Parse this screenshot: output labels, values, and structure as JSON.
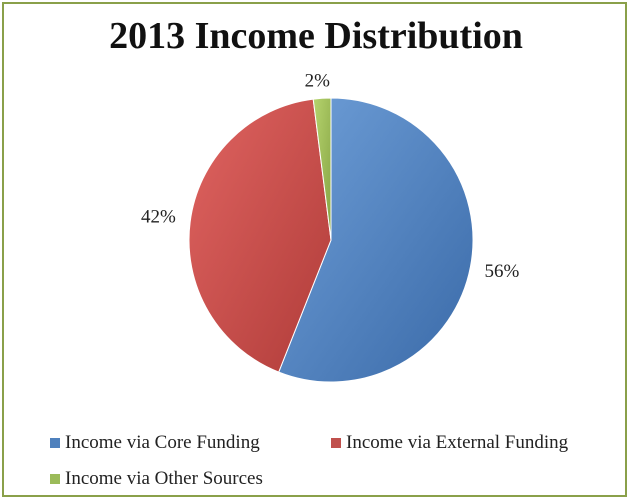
{
  "chart_data": {
    "type": "pie",
    "title": "2013 Income Distribution",
    "categories": [
      "Income via Core Funding",
      "Income via External Funding",
      "Income via Other Sources"
    ],
    "values": [
      56,
      42,
      2
    ],
    "data_labels": [
      "56%",
      "42%",
      "2%"
    ],
    "colors": [
      "#4f81bd",
      "#c0504d",
      "#9bbb59"
    ],
    "legend_position": "bottom"
  }
}
